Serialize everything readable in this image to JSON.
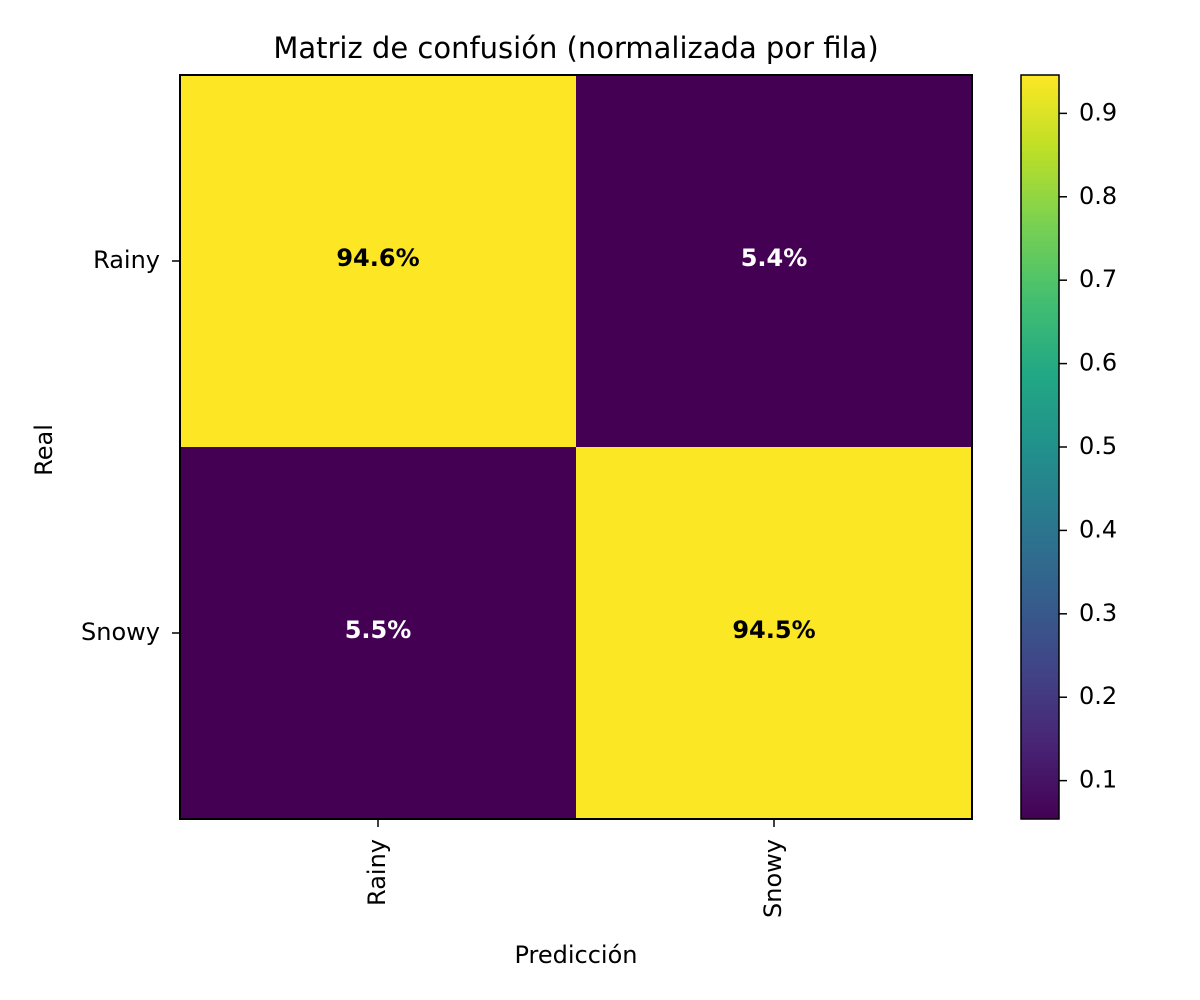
{
  "chart_data": {
    "type": "heatmap",
    "title": "Matriz de confusión (normalizada por fila)",
    "xlabel": "Predicción",
    "ylabel": "Real",
    "x_categories": [
      "Rainy",
      "Snowy"
    ],
    "y_categories": [
      "Rainy",
      "Snowy"
    ],
    "values": [
      [
        0.946,
        0.054
      ],
      [
        0.055,
        0.945
      ]
    ],
    "cell_labels": [
      [
        "94.6%",
        "5.4%"
      ],
      [
        "5.5%",
        "94.5%"
      ]
    ],
    "colormap": "viridis",
    "colorbar": {
      "range": [
        0.054,
        0.946
      ],
      "ticks": [
        0.1,
        0.2,
        0.3,
        0.4,
        0.5,
        0.6,
        0.7,
        0.8,
        0.9
      ],
      "tick_labels": [
        "0.1",
        "0.2",
        "0.3",
        "0.4",
        "0.5",
        "0.6",
        "0.7",
        "0.8",
        "0.9"
      ]
    },
    "grid": false
  }
}
